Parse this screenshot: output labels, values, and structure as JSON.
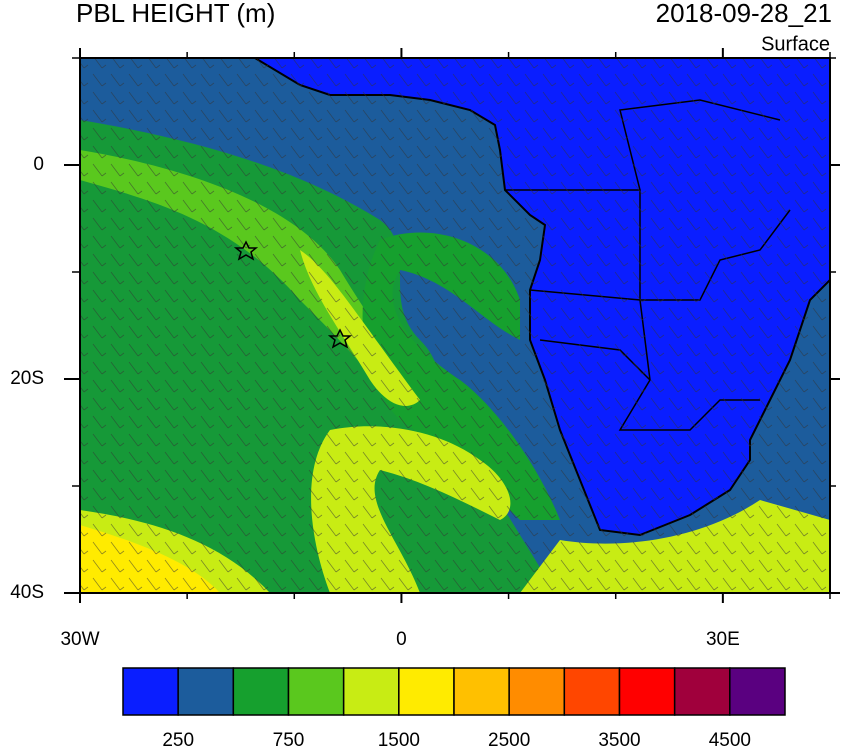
{
  "header": {
    "title": "PBL HEIGHT (m)",
    "time": "2018-09-28_21",
    "level": "Surface"
  },
  "map": {
    "lonlim": [
      -30,
      40
    ],
    "latlim": [
      -40,
      10
    ],
    "xticks": [
      {
        "value": -30,
        "label": "30W"
      },
      {
        "value": 0,
        "label": "0"
      },
      {
        "value": 30,
        "label": "30E"
      }
    ],
    "minor_xticks": [
      -20,
      -10,
      10,
      20,
      40
    ],
    "yticks": [
      {
        "value": 0,
        "label": "0"
      },
      {
        "value": -20,
        "label": "20S"
      },
      {
        "value": -40,
        "label": "40S"
      }
    ],
    "minor_yticks": [
      10,
      -10,
      -30
    ]
  },
  "colorbar": {
    "colors": [
      "#0a1eff",
      "#1c5c9c",
      "#16a02e",
      "#5ac81e",
      "#c8ec14",
      "#ffeb00",
      "#ffc000",
      "#ff8c00",
      "#ff4600",
      "#ff0000",
      "#a0003c",
      "#5a0080"
    ],
    "labels": [
      250,
      750,
      1500,
      2500,
      3500,
      4500
    ]
  }
}
